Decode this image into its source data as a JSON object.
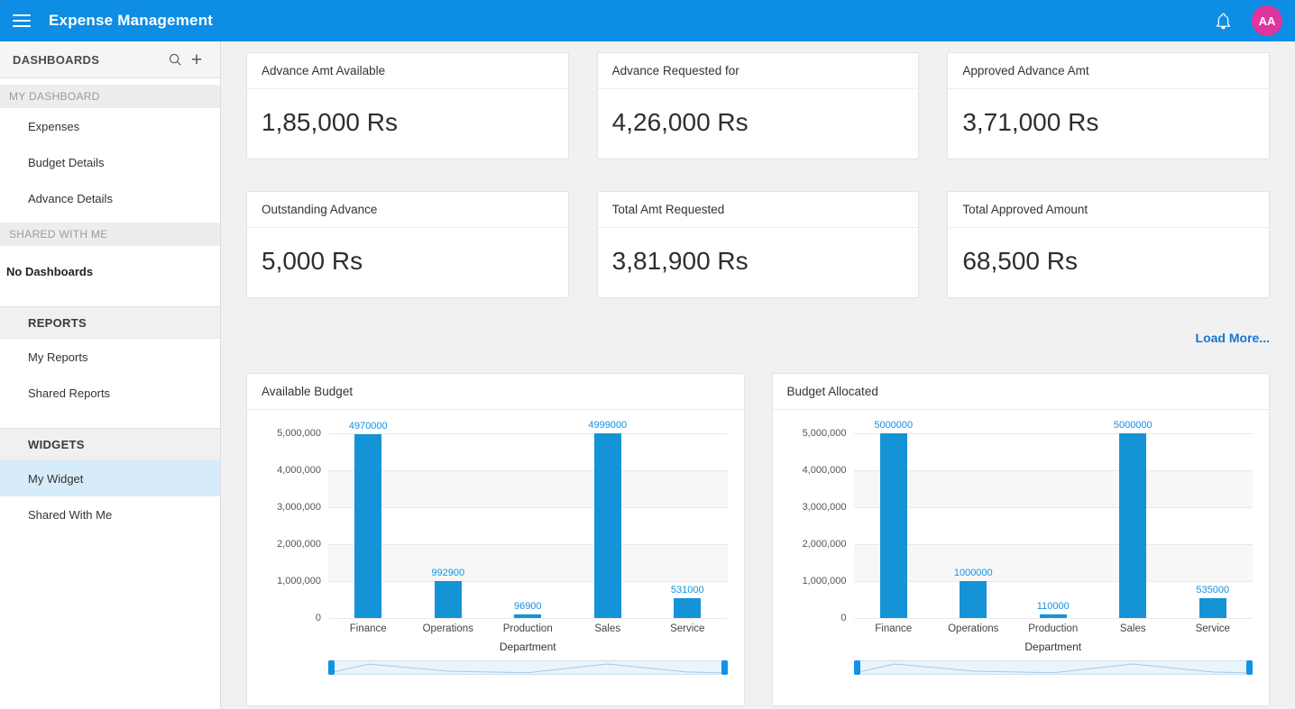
{
  "header": {
    "title": "Expense Management",
    "avatar_initials": "AA"
  },
  "sidebar": {
    "dashboards_label": "DASHBOARDS",
    "sections": {
      "my_dashboard": {
        "label": "MY DASHBOARD",
        "items": [
          "Expenses",
          "Budget Details",
          "Advance Details"
        ]
      },
      "shared_with_me": {
        "label": "SHARED WITH ME",
        "empty_text": "No Dashboards"
      },
      "reports": {
        "label": "REPORTS",
        "items": [
          "My Reports",
          "Shared Reports"
        ]
      },
      "widgets": {
        "label": "WIDGETS",
        "items": [
          "My Widget",
          "Shared With Me"
        ],
        "selected": "My Widget"
      }
    }
  },
  "kpi_cards": [
    {
      "title": "Advance Amt Available",
      "value": "1,85,000 Rs"
    },
    {
      "title": "Advance Requested for",
      "value": "4,26,000 Rs"
    },
    {
      "title": "Approved Advance Amt",
      "value": "3,71,000 Rs"
    },
    {
      "title": "Outstanding Advance",
      "value": "5,000 Rs"
    },
    {
      "title": "Total Amt Requested",
      "value": "3,81,900 Rs"
    },
    {
      "title": "Total Approved Amount",
      "value": "68,500 Rs"
    }
  ],
  "load_more_label": "Load More...",
  "chart_data": [
    {
      "type": "bar",
      "title": "Available Budget",
      "categories": [
        "Finance",
        "Operations",
        "Production",
        "Sales",
        "Service"
      ],
      "values": [
        4970000,
        992900,
        96900,
        4999000,
        531000
      ],
      "xlabel": "Department",
      "ylabel": "",
      "ylim": [
        0,
        5000000
      ],
      "ytick_step": 1000000,
      "grid": "on",
      "legend": "off",
      "bar_color": "#1494d6",
      "label_color": "#1191e8"
    },
    {
      "type": "bar",
      "title": "Budget Allocated",
      "categories": [
        "Finance",
        "Operations",
        "Production",
        "Sales",
        "Service"
      ],
      "values": [
        5000000,
        1000000,
        110000,
        5000000,
        535000
      ],
      "xlabel": "Department",
      "ylabel": "",
      "ylim": [
        0,
        5000000
      ],
      "ytick_step": 1000000,
      "grid": "on",
      "legend": "off",
      "bar_color": "#1494d6",
      "label_color": "#1191e8"
    }
  ],
  "colors": {
    "topbar": "#0d8de4",
    "accent": "#1191e8",
    "avatar_bg": "#e0359c",
    "selected_item_bg": "#d7ecfb"
  }
}
